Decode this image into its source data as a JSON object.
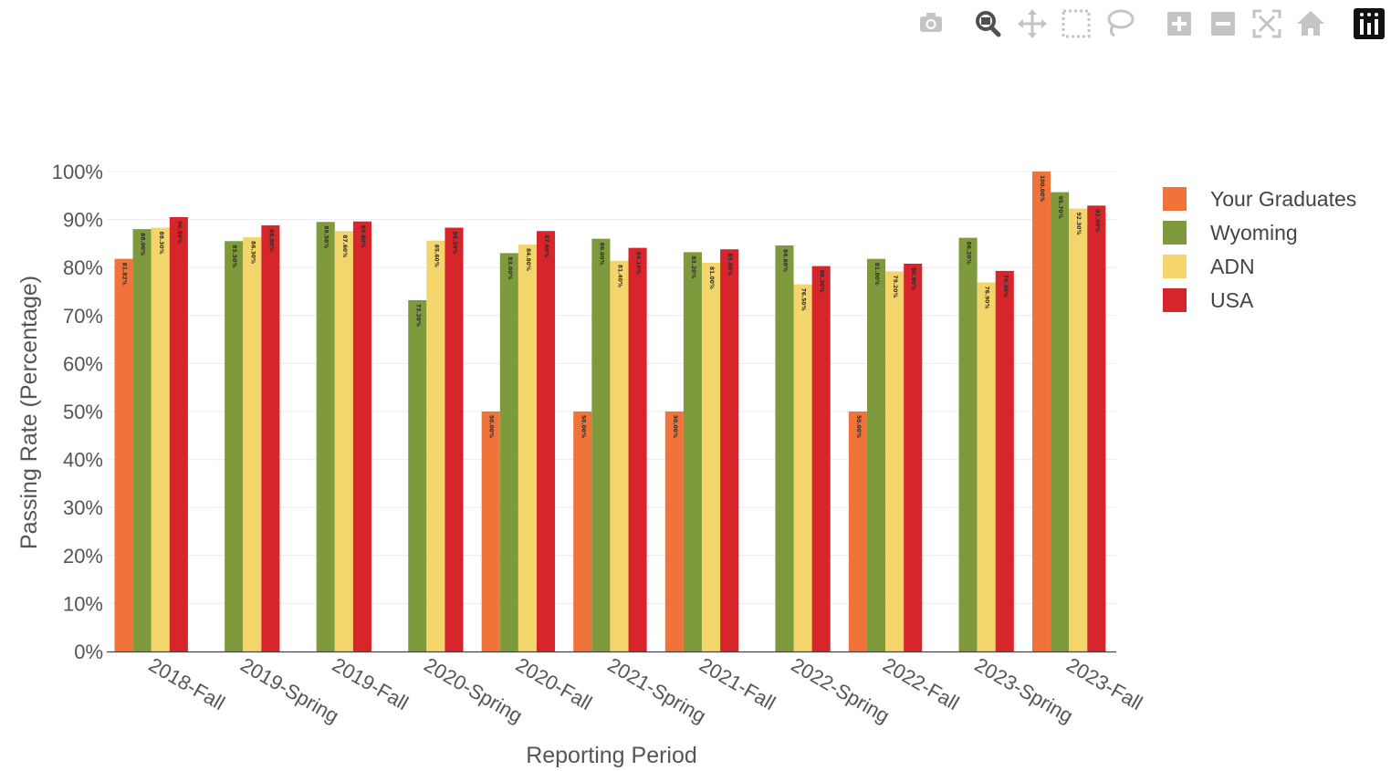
{
  "toolbar": {
    "buttons": [
      {
        "name": "camera-icon",
        "label": "Download plot as a png"
      },
      {
        "name": "zoom-icon",
        "label": "Zoom"
      },
      {
        "name": "pan-icon",
        "label": "Pan"
      },
      {
        "name": "box-select-icon",
        "label": "Box Select"
      },
      {
        "name": "lasso-select-icon",
        "label": "Lasso Select"
      },
      {
        "name": "zoom-in-icon",
        "label": "Zoom in"
      },
      {
        "name": "zoom-out-icon",
        "label": "Zoom out"
      },
      {
        "name": "autoscale-icon",
        "label": "Autoscale"
      },
      {
        "name": "home-icon",
        "label": "Reset axes"
      },
      {
        "name": "plotly-logo-icon",
        "label": "Produced with Plotly"
      }
    ],
    "colors": {
      "inactive": "#c4c4c4",
      "active": "#505050"
    }
  },
  "chart_data": {
    "type": "bar",
    "title": "",
    "xlabel": "Reporting Period",
    "ylabel": "Passing Rate (Percentage)",
    "ylim": [
      0,
      100
    ],
    "yticks": [
      0,
      10,
      20,
      30,
      40,
      50,
      60,
      70,
      80,
      90,
      100
    ],
    "ytick_labels": [
      "0%",
      "10%",
      "20%",
      "30%",
      "40%",
      "50%",
      "60%",
      "70%",
      "80%",
      "90%",
      "100%"
    ],
    "grid": true,
    "legend": "right",
    "categories": [
      "2018-Fall",
      "2019-Spring",
      "2019-Fall",
      "2020-Spring",
      "2020-Fall",
      "2021-Spring",
      "2021-Fall",
      "2022-Spring",
      "2022-Fall",
      "2023-Spring",
      "2023-Fall"
    ],
    "series": [
      {
        "name": "Your Graduates",
        "color": "#f0743a",
        "values": [
          81.82,
          null,
          null,
          null,
          50.0,
          50.0,
          50.0,
          null,
          50.0,
          null,
          100.0
        ]
      },
      {
        "name": "Wyoming",
        "color": "#7f9a3c",
        "values": [
          88.0,
          85.5,
          89.5,
          73.2,
          83.0,
          86.0,
          83.2,
          84.6,
          81.8,
          86.2,
          95.7
        ]
      },
      {
        "name": "ADN",
        "color": "#f4d56b",
        "values": [
          88.3,
          86.3,
          87.6,
          85.6,
          84.8,
          81.4,
          81.0,
          76.5,
          79.2,
          76.9,
          92.3
        ]
      },
      {
        "name": "USA",
        "color": "#d7262b",
        "values": [
          90.5,
          88.8,
          89.6,
          88.3,
          87.6,
          84.1,
          83.8,
          80.3,
          80.8,
          79.3,
          92.9
        ]
      }
    ]
  }
}
